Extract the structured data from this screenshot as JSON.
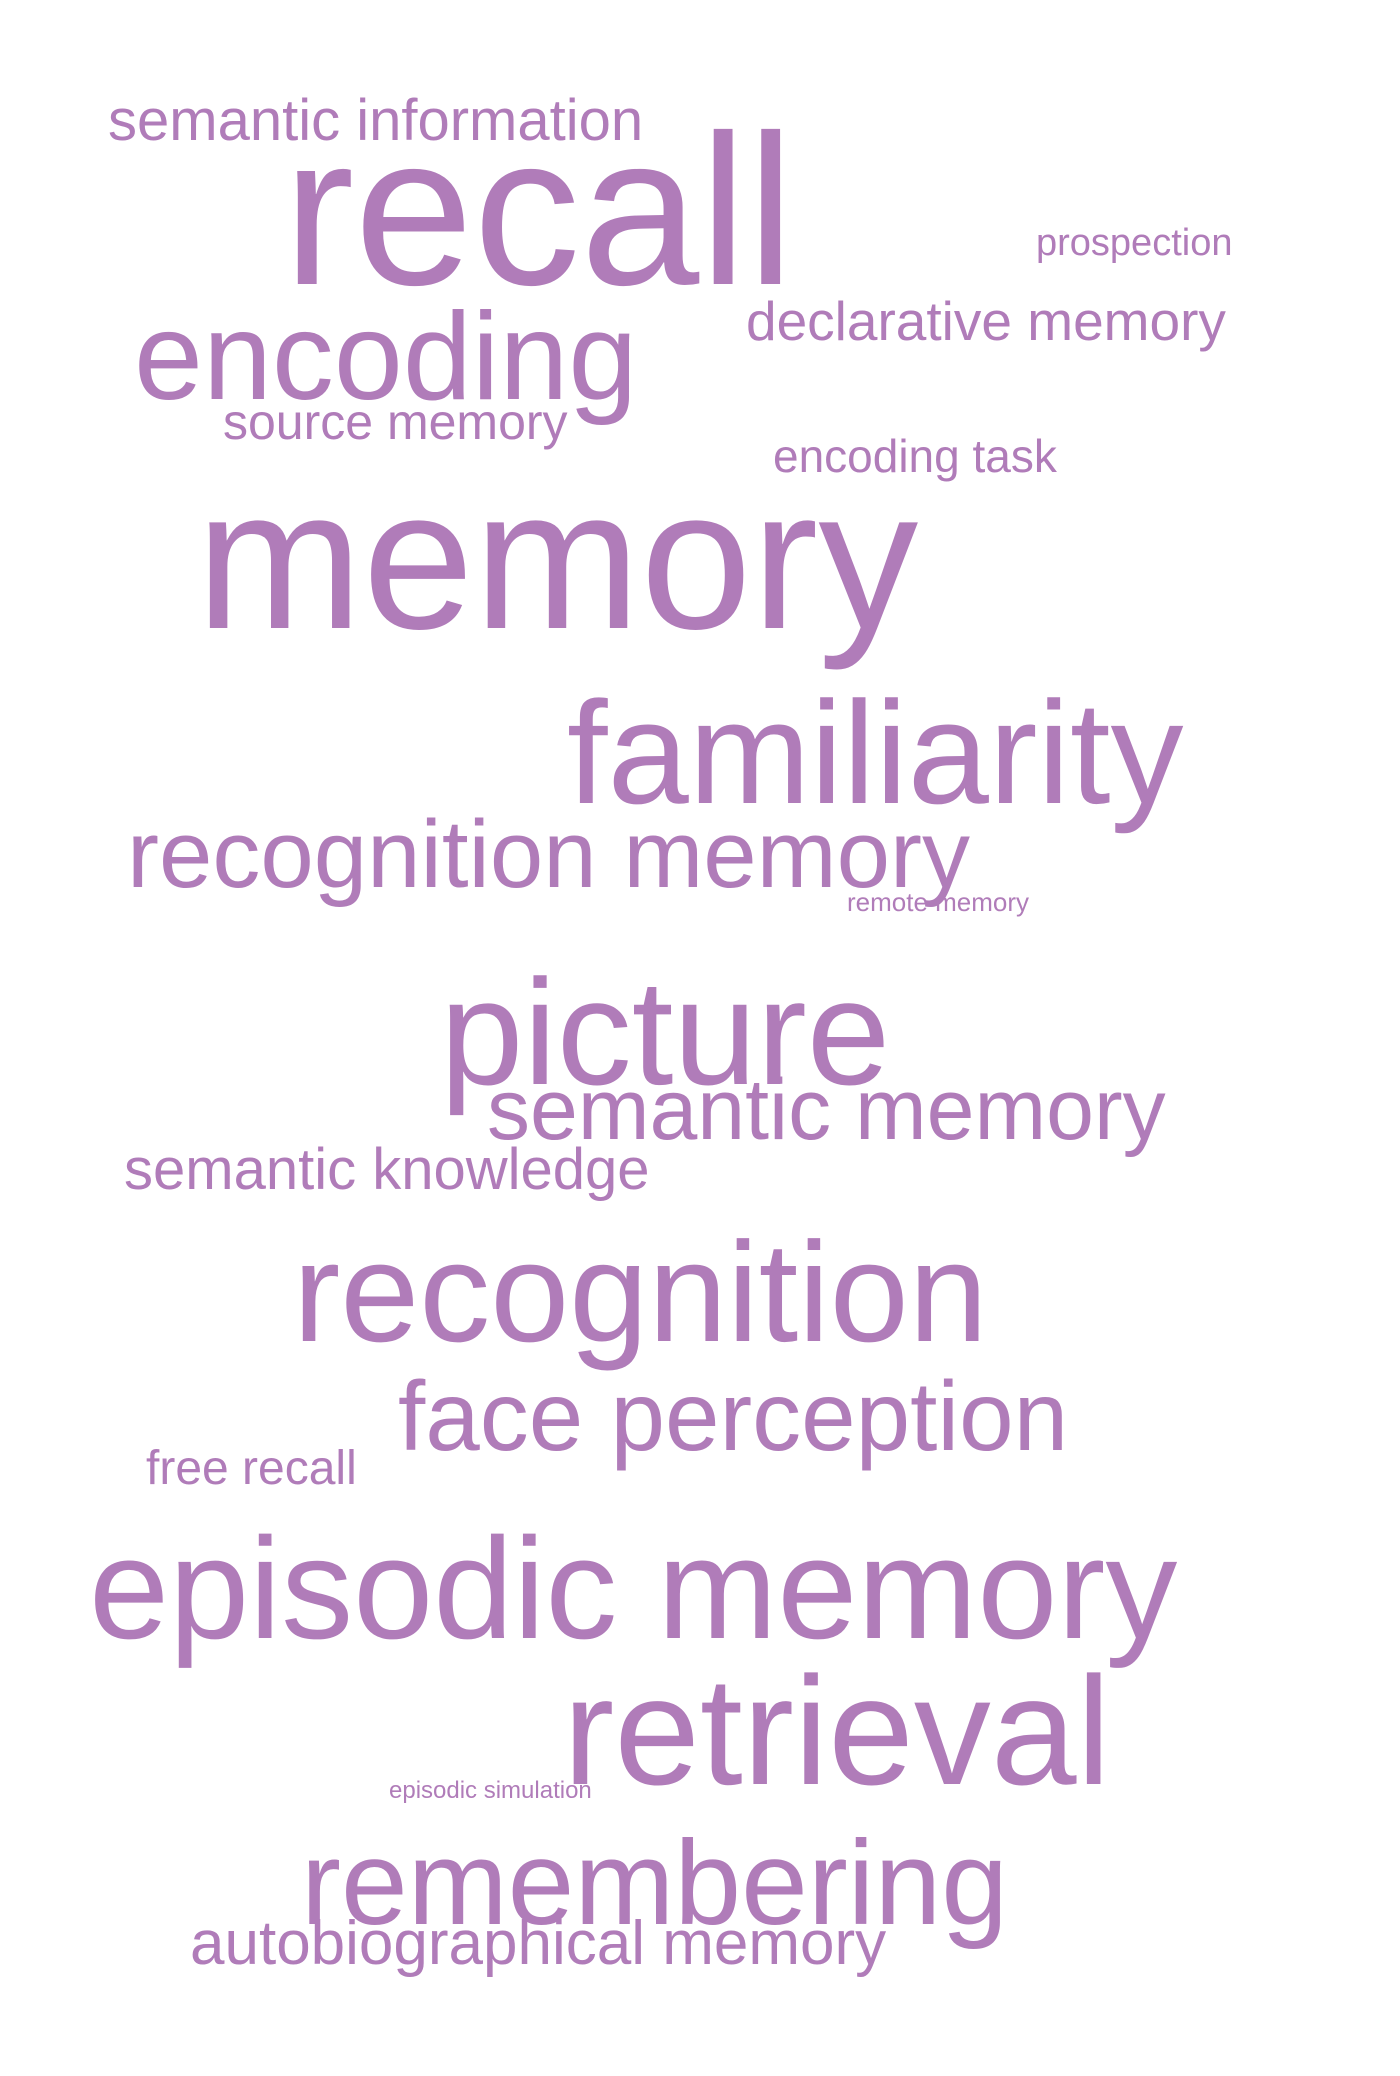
{
  "word_color": "#b07cb9",
  "background_color": "#ffffff",
  "words": {
    "semantic_information": "semantic information",
    "recall": "recall",
    "prospection": "prospection",
    "encoding": "encoding",
    "declarative_memory": "declarative memory",
    "source_memory": "source memory",
    "encoding_task": "encoding task",
    "memory": "memory",
    "familiarity": "familiarity",
    "recognition_memory": "recognition memory",
    "remote_memory": "remote memory",
    "picture": "picture",
    "semantic_memory": "semantic memory",
    "semantic_knowledge": "semantic knowledge",
    "recognition": "recognition",
    "face_perception": "face perception",
    "free_recall": "free recall",
    "episodic_memory": "episodic memory",
    "retrieval": "retrieval",
    "episodic_simulation": "episodic simulation",
    "remembering": "remembering",
    "autobiographical_memory": "autobiographical memory"
  }
}
